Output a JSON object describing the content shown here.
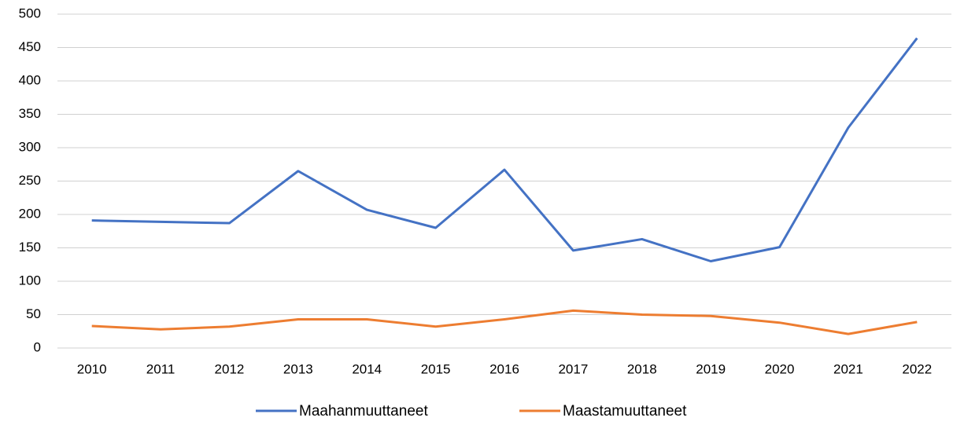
{
  "chart_data": {
    "type": "line",
    "categories": [
      "2010",
      "2011",
      "2012",
      "2013",
      "2014",
      "2015",
      "2016",
      "2017",
      "2018",
      "2019",
      "2020",
      "2021",
      "2022"
    ],
    "series": [
      {
        "name": "Maahanmuuttaneet",
        "color": "#4472c4",
        "values": [
          191,
          189,
          187,
          265,
          207,
          180,
          267,
          146,
          163,
          130,
          151,
          330,
          464
        ]
      },
      {
        "name": "Maastamuuttaneet",
        "color": "#ed7d31",
        "values": [
          33,
          28,
          32,
          43,
          43,
          32,
          43,
          56,
          50,
          48,
          38,
          21,
          39
        ]
      }
    ],
    "ylim": [
      0,
      500
    ],
    "yticks": [
      0,
      50,
      100,
      150,
      200,
      250,
      300,
      350,
      400,
      450,
      500
    ],
    "grid": true,
    "legend": "bottom"
  }
}
